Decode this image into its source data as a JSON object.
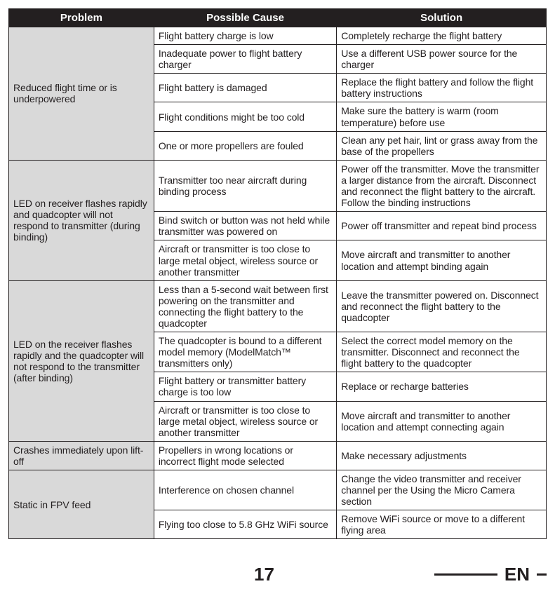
{
  "headers": {
    "c1": "Problem",
    "c2": "Possible Cause",
    "c3": "Solution"
  },
  "sections": [
    {
      "problem": "Reduced flight time or is underpowered",
      "rows": [
        {
          "cause": "Flight battery charge is low",
          "solution": "Completely recharge the flight battery"
        },
        {
          "cause": "Inadequate power to flight battery charger",
          "solution": "Use a different USB power source for the charger"
        },
        {
          "cause": "Flight battery is damaged",
          "solution": "Replace the flight battery and follow the flight battery instructions"
        },
        {
          "cause": "Flight conditions might be too cold",
          "solution": "Make sure the battery is warm (room temperature) before use"
        },
        {
          "cause": "One or more propellers are fouled",
          "solution": "Clean any pet hair, lint or grass away from the base of the propellers"
        }
      ]
    },
    {
      "problem": "LED on receiver flashes rapidly and quadcopter will not respond to transmitter (during binding)",
      "rows": [
        {
          "cause": "Transmitter too near aircraft during binding process",
          "solution": "Power off the transmitter. Move the transmitter a larger distance from the aircraft. Disconnect and reconnect the flight battery to the aircraft. Follow the binding instructions"
        },
        {
          "cause": "Bind switch or button was not held while transmitter was powered on",
          "solution": "Power off transmitter and repeat bind process"
        },
        {
          "cause": "Aircraft or transmitter is too close to large metal object, wireless source or another transmitter",
          "solution": "Move aircraft and transmitter to another location and attempt binding again"
        }
      ]
    },
    {
      "problem": "LED on the receiver flashes rapidly and the quadcopter will not respond to the transmitter (after binding)",
      "rows": [
        {
          "cause": "Less than a 5-second wait between first powering on the transmitter and connecting the flight battery to the quadcopter",
          "solution": "Leave the transmitter powered on. Disconnect and reconnect the flight battery to the quadcopter"
        },
        {
          "cause": "The quadcopter is bound to a different model memory (ModelMatch™ transmitters only)",
          "solution": "Select the correct model memory on the transmitter. Disconnect and reconnect the flight battery to the quadcopter"
        },
        {
          "cause": "Flight battery or transmitter battery charge is too low",
          "solution": "Replace or recharge batteries"
        },
        {
          "cause": "Aircraft or transmitter is too close to large metal object, wireless source or another transmitter",
          "solution": "Move aircraft and transmitter to another location and attempt connecting again"
        }
      ]
    },
    {
      "problem": "Crashes immediately upon lift-off",
      "rows": [
        {
          "cause": "Propellers in wrong locations or incorrect flight mode selected",
          "solution": "Make necessary adjustments"
        }
      ]
    },
    {
      "problem": "Static in FPV feed",
      "rows": [
        {
          "cause": "Interference on chosen channel",
          "solution": "Change the video transmitter and receiver channel per the Using the Micro Camera section"
        },
        {
          "cause": "Flying too close to 5.8 GHz WiFi source",
          "solution": "Remove WiFi source or move to a different flying area"
        }
      ]
    }
  ],
  "page_number": "17",
  "language": "EN"
}
